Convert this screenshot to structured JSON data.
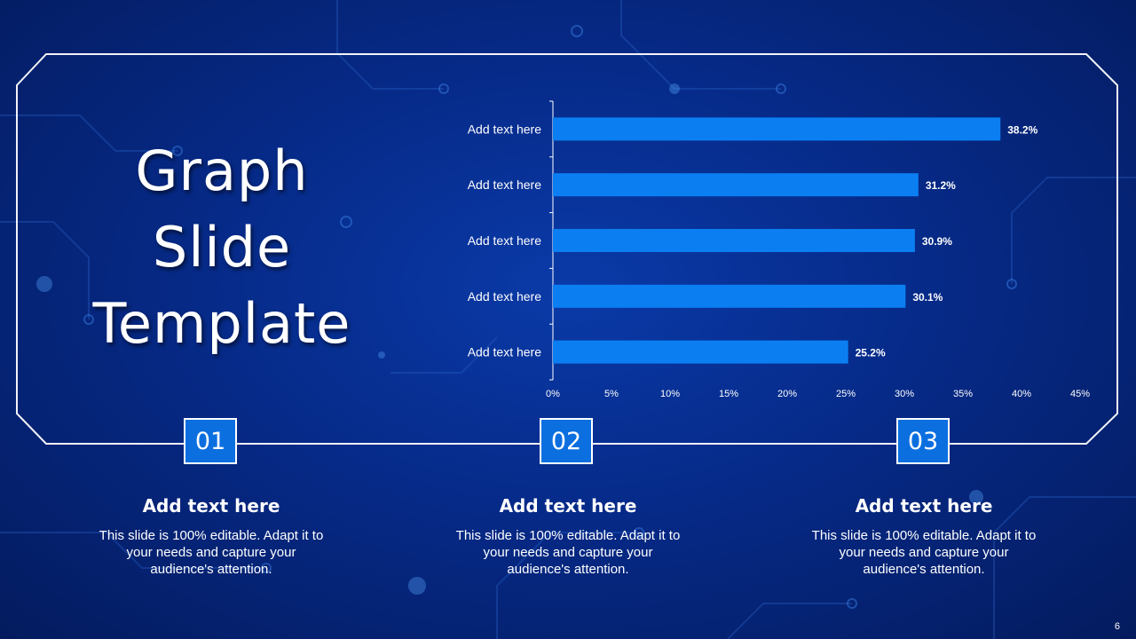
{
  "slide": {
    "title_lines": [
      "Graph",
      "Slide",
      "Template"
    ],
    "page_number": "6"
  },
  "chart_data": {
    "type": "bar",
    "orientation": "horizontal",
    "categories": [
      "Add text here",
      "Add text here",
      "Add text here",
      "Add text here",
      "Add text here"
    ],
    "values": [
      38.2,
      31.2,
      30.9,
      30.1,
      25.2
    ],
    "value_labels": [
      "38.2%",
      "31.2%",
      "30.9%",
      "30.1%",
      "25.2%"
    ],
    "xlim": [
      0,
      45
    ],
    "x_ticks": [
      0,
      5,
      10,
      15,
      20,
      25,
      30,
      35,
      40,
      45
    ],
    "x_tick_labels": [
      "0%",
      "5%",
      "10%",
      "15%",
      "20%",
      "25%",
      "30%",
      "35%",
      "40%",
      "45%"
    ],
    "bar_color": "#0b7ff2",
    "grid": false,
    "legend": "none"
  },
  "steps": [
    {
      "number": "01",
      "title": "Add text here",
      "body": "This slide is 100% editable. Adapt it to your needs and capture your audience's attention."
    },
    {
      "number": "02",
      "title": "Add text here",
      "body": "This slide is 100% editable. Adapt it to your needs and capture your audience's attention."
    },
    {
      "number": "03",
      "title": "Add text here",
      "body": "This slide is 100% editable. Adapt it to your needs and capture your audience's attention."
    }
  ],
  "colors": {
    "background_dark": "#041b5e",
    "background_light": "#0a3aa8",
    "accent": "#0b6fe0",
    "frame": "#ffffff"
  }
}
